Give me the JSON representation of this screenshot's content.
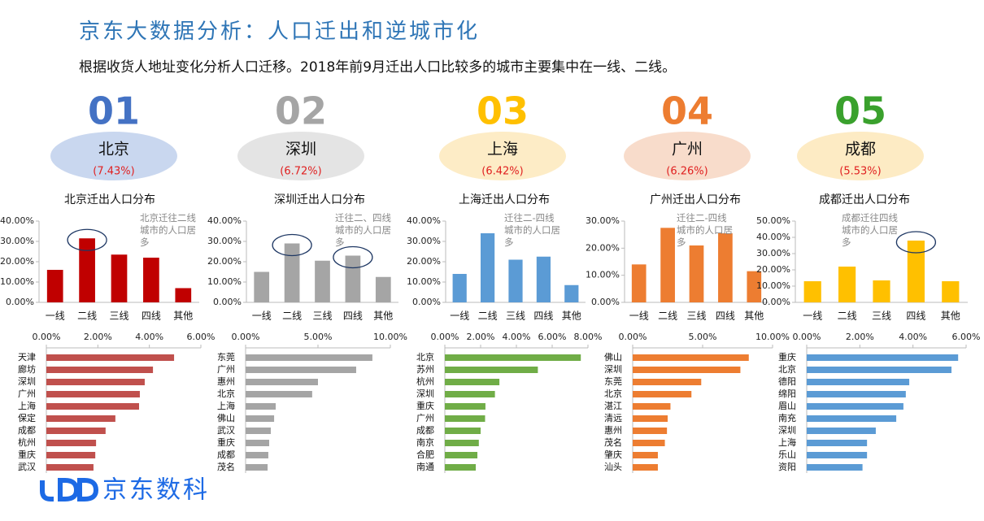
{
  "header": {
    "title": "京东大数据分析：人口迁出和逆城市化",
    "subtitle": "根据收货人地址变化分析人口迁移。2018年前9月迁出人口比较多的城市主要集中在一线、二线。"
  },
  "cities": [
    {
      "number": "01",
      "name": "北京",
      "share": "(7.43%)",
      "color": "#4472c4",
      "bubble_color": "#c9d7ef"
    },
    {
      "number": "02",
      "name": "深圳",
      "share": "(6.72%)",
      "color": "#a5a5a5",
      "bubble_color": "#e4e4e4"
    },
    {
      "number": "03",
      "name": "上海",
      "share": "(6.42%)",
      "color": "#ffc000",
      "bubble_color": "#fdecc6"
    },
    {
      "number": "04",
      "name": "广州",
      "share": "(6.26%)",
      "color": "#ed7d31",
      "bubble_color": "#f8dccb"
    },
    {
      "number": "05",
      "name": "成都",
      "share": "(5.53%)",
      "color": "#3aa12d",
      "bubble_color": "#fdebc4"
    }
  ],
  "chart_data": [
    {
      "type": "bar",
      "title": "北京迁出人口分布",
      "annotation": "北京迁往二线城市的人口居多",
      "categories": [
        "一线",
        "二线",
        "三线",
        "四线",
        "其他"
      ],
      "values": [
        16,
        31.5,
        23.5,
        22,
        7
      ],
      "color": "#c00000",
      "ylim": [
        0,
        40
      ],
      "yticks": [
        {
          "value": 0,
          "label": "0.00%"
        },
        {
          "value": 10,
          "label": "10.00%"
        },
        {
          "value": 20,
          "label": "20.00%"
        },
        {
          "value": 30,
          "label": "30.00%"
        },
        {
          "value": 40,
          "label": "40.00%"
        }
      ]
    },
    {
      "type": "bar",
      "title": "深圳迁出人口分布",
      "annotation": "迁往二、四线城市的人口居多",
      "categories": [
        "一线",
        "二线",
        "三线",
        "四线",
        "其他"
      ],
      "values": [
        15,
        29,
        20.5,
        23,
        12.5
      ],
      "color": "#a5a5a5",
      "ylim": [
        0,
        40
      ],
      "yticks": [
        {
          "value": 0,
          "label": "0.00%"
        },
        {
          "value": 10,
          "label": "10.00%"
        },
        {
          "value": 20,
          "label": "20.00%"
        },
        {
          "value": 30,
          "label": "30.00%"
        },
        {
          "value": 40,
          "label": "40.00%"
        }
      ]
    },
    {
      "type": "bar",
      "title": "上海迁出人口分布",
      "annotation": "迁往二-四线城市的人口居多",
      "categories": [
        "一线",
        "二线",
        "三线",
        "四线",
        "其他"
      ],
      "values": [
        14,
        34,
        21,
        22.5,
        8.5
      ],
      "color": "#5b9bd5",
      "ylim": [
        0,
        40
      ],
      "yticks": [
        {
          "value": 0,
          "label": "0.00%"
        },
        {
          "value": 10,
          "label": "10.00%"
        },
        {
          "value": 20,
          "label": "20.00%"
        },
        {
          "value": 30,
          "label": "30.00%"
        },
        {
          "value": 40,
          "label": "40.00%"
        }
      ]
    },
    {
      "type": "bar",
      "title": "广州迁出人口分布",
      "annotation": "迁往二-四线城市的人口居多",
      "categories": [
        "一线",
        "二线",
        "三线",
        "四线",
        "其他"
      ],
      "values": [
        14,
        27.5,
        21,
        25.5,
        11.5
      ],
      "color": "#ed7d31",
      "ylim": [
        0,
        30
      ],
      "yticks": [
        {
          "value": 0,
          "label": "0.00%"
        },
        {
          "value": 10,
          "label": "10.00%"
        },
        {
          "value": 20,
          "label": "20.00%"
        },
        {
          "value": 30,
          "label": "30.00%"
        }
      ]
    },
    {
      "type": "bar",
      "title": "成都迁出人口分布",
      "annotation": "成都迁往四线城市的人口居多",
      "categories": [
        "一线",
        "二线",
        "三线",
        "四线",
        "其他"
      ],
      "values": [
        13,
        22,
        13.5,
        38,
        13
      ],
      "color": "#ffc000",
      "ylim": [
        0,
        50
      ],
      "yticks": [
        {
          "value": 0,
          "label": "0.00%"
        },
        {
          "value": 10,
          "label": "10.00%"
        },
        {
          "value": 20,
          "label": "20.00%"
        },
        {
          "value": 30,
          "label": "30.00%"
        },
        {
          "value": 40,
          "label": "40.00%"
        },
        {
          "value": 50,
          "label": "50.00%"
        }
      ]
    },
    {
      "type": "barh",
      "categories": [
        "天津",
        "廊坊",
        "深圳",
        "广州",
        "上海",
        "保定",
        "成都",
        "杭州",
        "重庆",
        "武汉"
      ],
      "values": [
        4.96,
        4.14,
        3.82,
        3.63,
        3.6,
        2.68,
        2.3,
        1.93,
        1.9,
        1.83
      ],
      "color": "#c0504d",
      "xlim": [
        0,
        6
      ],
      "xticks": [
        {
          "value": 0,
          "label": "0.00%"
        },
        {
          "value": 2,
          "label": "2.00%"
        },
        {
          "value": 4,
          "label": "4.00%"
        },
        {
          "value": 6,
          "label": "6.00%"
        }
      ]
    },
    {
      "type": "barh",
      "categories": [
        "东莞",
        "广州",
        "惠州",
        "北京",
        "上海",
        "佛山",
        "武汉",
        "重庆",
        "成都",
        "茂名"
      ],
      "values": [
        8.76,
        7.64,
        5.0,
        4.6,
        2.08,
        1.97,
        1.74,
        1.63,
        1.57,
        1.52
      ],
      "color": "#a5a5a5",
      "xlim": [
        0,
        10
      ],
      "xticks": [
        {
          "value": 0,
          "label": "0.00%"
        },
        {
          "value": 5,
          "label": "5.00%"
        },
        {
          "value": 10,
          "label": "10.00%"
        }
      ]
    },
    {
      "type": "barh",
      "categories": [
        "北京",
        "苏州",
        "杭州",
        "深圳",
        "重庆",
        "广州",
        "成都",
        "南京",
        "合肥",
        "南通"
      ],
      "values": [
        7.6,
        5.2,
        3.05,
        2.8,
        2.27,
        2.25,
        2.0,
        1.9,
        1.82,
        1.73
      ],
      "color": "#70ad47",
      "xlim": [
        0,
        8
      ],
      "xticks": [
        {
          "value": 0,
          "label": "0.00%"
        },
        {
          "value": 2,
          "label": "2.00%"
        },
        {
          "value": 4,
          "label": "4.00%"
        },
        {
          "value": 6,
          "label": "6.00%"
        },
        {
          "value": 8,
          "label": "8.00%"
        }
      ]
    },
    {
      "type": "barh",
      "categories": [
        "佛山",
        "深圳",
        "东莞",
        "北京",
        "湛江",
        "清远",
        "惠州",
        "茂名",
        "肇庆",
        "汕头"
      ],
      "values": [
        8.3,
        7.7,
        4.9,
        4.2,
        2.7,
        2.5,
        2.45,
        2.3,
        1.8,
        1.8
      ],
      "color": "#ed7d31",
      "xlim": [
        0,
        10
      ],
      "xticks": [
        {
          "value": 0,
          "label": "0.00%"
        },
        {
          "value": 5,
          "label": "5.00%"
        },
        {
          "value": 10,
          "label": "10.00%"
        }
      ]
    },
    {
      "type": "barh",
      "categories": [
        "重庆",
        "北京",
        "德阳",
        "绵阳",
        "眉山",
        "南充",
        "深圳",
        "上海",
        "乐山",
        "资阳"
      ],
      "values": [
        5.7,
        5.45,
        3.86,
        3.73,
        3.64,
        3.37,
        2.6,
        2.27,
        2.27,
        2.1
      ],
      "color": "#5b9bd5",
      "xlim": [
        0,
        6
      ],
      "xticks": [
        {
          "value": 0,
          "label": "0.00%"
        },
        {
          "value": 2,
          "label": "2.00%"
        },
        {
          "value": 4,
          "label": "4.00%"
        },
        {
          "value": 6,
          "label": "6.00%"
        }
      ]
    }
  ],
  "logo": {
    "text": "京东数科"
  }
}
